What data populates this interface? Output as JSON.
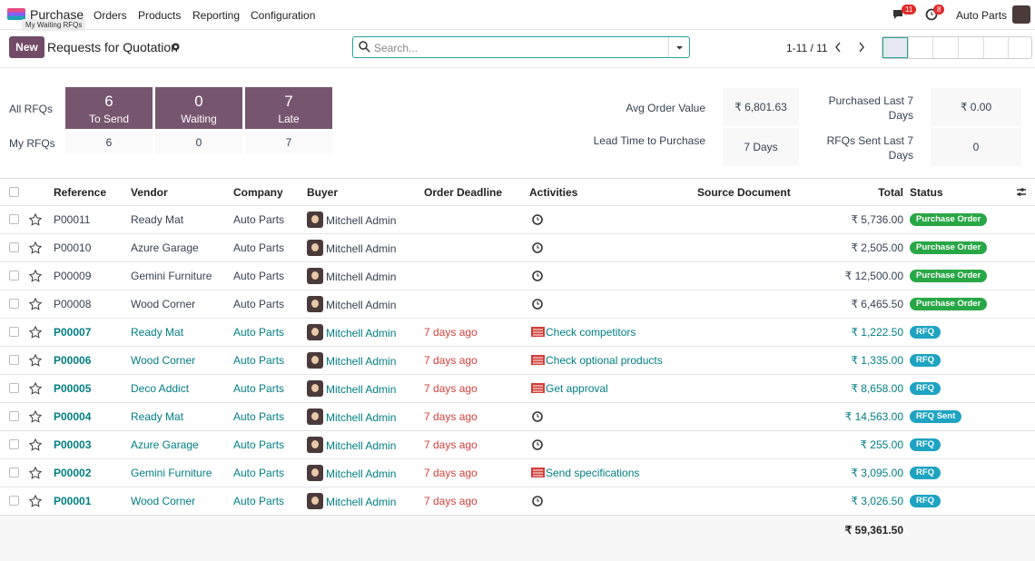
{
  "nav": {
    "app": "Purchase",
    "tooltip": "My Waiting RFQs",
    "menu": [
      "Orders",
      "Products",
      "Reporting",
      "Configuration"
    ],
    "messages_badge": 11,
    "activities_badge": 8,
    "company": "Auto Parts"
  },
  "control": {
    "new": "New",
    "title": "Requests for Quotation",
    "search_placeholder": "Search...",
    "pager": "1-11 / 11"
  },
  "dashboard": {
    "all_rfqs": "All RFQs",
    "my_rfqs": "My RFQs",
    "tiles": [
      {
        "count": 6,
        "label": "To Send",
        "mine": 6
      },
      {
        "count": 0,
        "label": "Waiting",
        "mine": 0
      },
      {
        "count": 7,
        "label": "Late",
        "mine": 7
      }
    ],
    "stats": [
      {
        "label": "Avg Order Value",
        "value": "₹ 6,801.63"
      },
      {
        "label": "Purchased Last 7 Days",
        "value": "₹ 0.00"
      },
      {
        "label": "Lead Time to Purchase",
        "value": "7 Days"
      },
      {
        "label": "RFQs Sent Last 7 Days",
        "value": "0"
      }
    ]
  },
  "table": {
    "columns": [
      "Reference",
      "Vendor",
      "Company",
      "Buyer",
      "Order Deadline",
      "Activities",
      "Source Document",
      "Total",
      "Status"
    ],
    "rows": [
      {
        "reference": "P00011",
        "vendor": "Ready Mat",
        "company": "Auto Parts",
        "buyer": "Mitchell Admin",
        "total": "₹ 5,736.00",
        "status": "Purchase Order"
      },
      {
        "reference": "P00010",
        "vendor": "Azure Garage",
        "company": "Auto Parts",
        "buyer": "Mitchell Admin",
        "total": "₹ 2,505.00",
        "status": "Purchase Order"
      },
      {
        "reference": "P00009",
        "vendor": "Gemini Furniture",
        "company": "Auto Parts",
        "buyer": "Mitchell Admin",
        "total": "₹ 12,500.00",
        "status": "Purchase Order"
      },
      {
        "reference": "P00008",
        "vendor": "Wood Corner",
        "company": "Auto Parts",
        "buyer": "Mitchell Admin",
        "total": "₹ 6,465.50",
        "status": "Purchase Order"
      },
      {
        "reference": "P00007",
        "vendor": "Ready Mat",
        "company": "Auto Parts",
        "buyer": "Mitchell Admin",
        "deadline": "7 days ago",
        "activity": "Check competitors",
        "total": "₹ 1,222.50",
        "status": "RFQ"
      },
      {
        "reference": "P00006",
        "vendor": "Wood Corner",
        "company": "Auto Parts",
        "buyer": "Mitchell Admin",
        "deadline": "7 days ago",
        "activity": "Check optional products",
        "total": "₹ 1,335.00",
        "status": "RFQ"
      },
      {
        "reference": "P00005",
        "vendor": "Deco Addict",
        "company": "Auto Parts",
        "buyer": "Mitchell Admin",
        "deadline": "7 days ago",
        "activity": "Get approval",
        "total": "₹ 8,658.00",
        "status": "RFQ"
      },
      {
        "reference": "P00004",
        "vendor": "Ready Mat",
        "company": "Auto Parts",
        "buyer": "Mitchell Admin",
        "deadline": "7 days ago",
        "total": "₹ 14,563.00",
        "status": "RFQ Sent"
      },
      {
        "reference": "P00003",
        "vendor": "Azure Garage",
        "company": "Auto Parts",
        "buyer": "Mitchell Admin",
        "deadline": "7 days ago",
        "total": "₹ 255.00",
        "status": "RFQ"
      },
      {
        "reference": "P00002",
        "vendor": "Gemini Furniture",
        "company": "Auto Parts",
        "buyer": "Mitchell Admin",
        "deadline": "7 days ago",
        "activity": "Send specifications",
        "total": "₹ 3,095.00",
        "status": "RFQ"
      },
      {
        "reference": "P00001",
        "vendor": "Wood Corner",
        "company": "Auto Parts",
        "buyer": "Mitchell Admin",
        "deadline": "7 days ago",
        "total": "₹ 3,026.50",
        "status": "RFQ"
      }
    ],
    "total": "₹ 59,361.50"
  }
}
